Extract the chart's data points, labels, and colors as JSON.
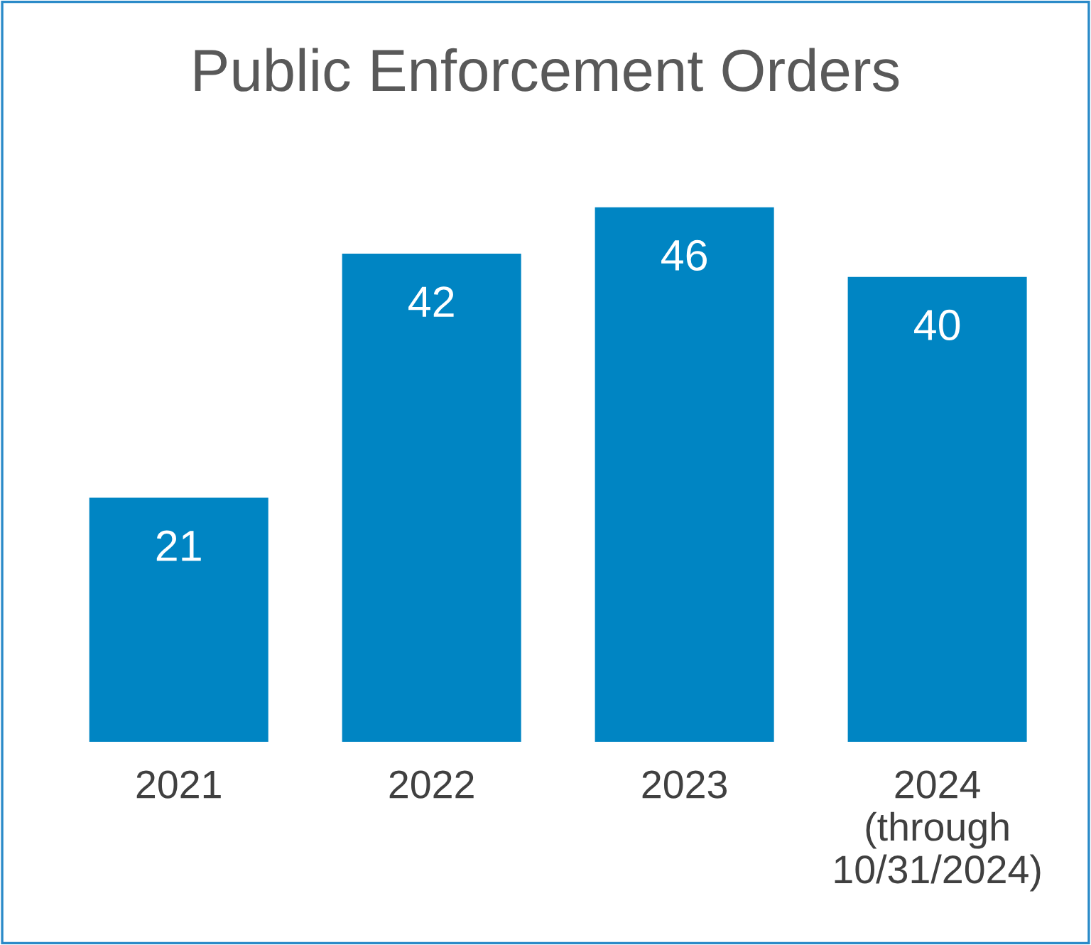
{
  "chart_data": {
    "type": "bar",
    "title": "Public Enforcement Orders",
    "categories": [
      "2021",
      "2022",
      "2023",
      "2024\n(through\n10/31/2024)"
    ],
    "values": [
      21,
      42,
      46,
      40
    ],
    "color": "#0085c3",
    "data_labels": true,
    "grid": false,
    "legend": false
  }
}
